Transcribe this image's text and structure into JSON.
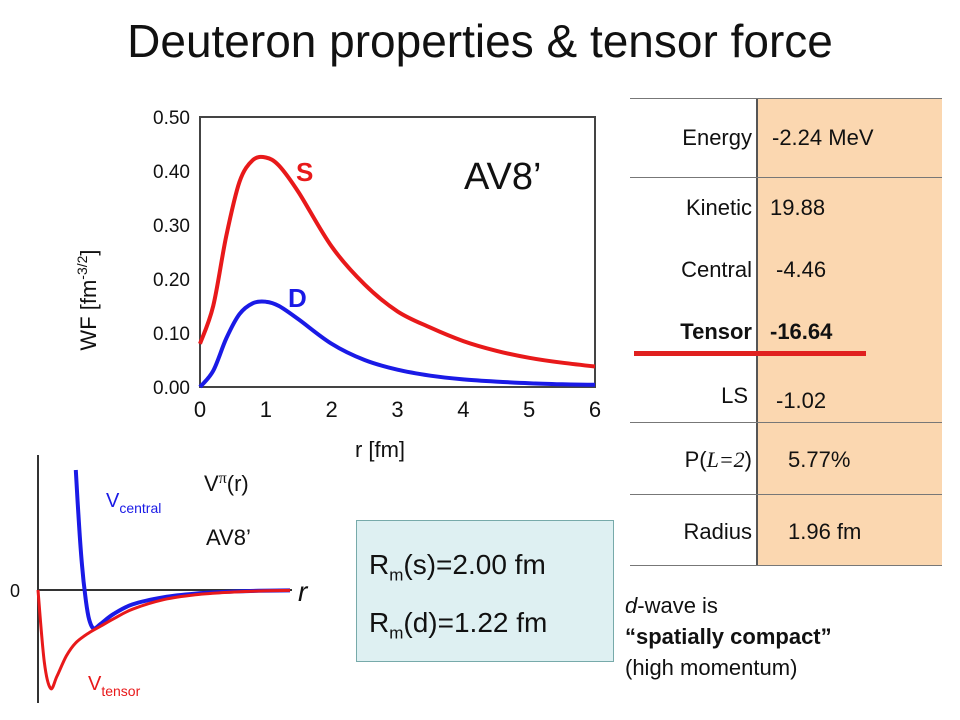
{
  "title": "Deuteron properties & tensor force",
  "wf_chart": {
    "ylabel_main": "WF [fm",
    "ylabel_sup": "-3/2",
    "ylabel_end": "]",
    "xlabel": "r [fm]",
    "y_ticks": [
      "0.00",
      "0.10",
      "0.20",
      "0.30",
      "0.40",
      "0.50"
    ],
    "x_ticks": [
      "0",
      "1",
      "2",
      "3",
      "4",
      "5",
      "6"
    ],
    "label_s": "S",
    "label_d": "D",
    "label_model": "AV8’",
    "color_s": "#e8191a",
    "color_d": "#1a1ae6"
  },
  "chart_data": [
    {
      "type": "line",
      "title": "",
      "xlabel": "r [fm]",
      "ylabel": "WF [fm-3/2]",
      "xlim": [
        0,
        6
      ],
      "ylim": [
        0,
        0.5
      ],
      "grid": false,
      "series": [
        {
          "name": "S",
          "color": "#e8191a",
          "x": [
            0,
            0.2,
            0.4,
            0.6,
            0.8,
            1.0,
            1.2,
            1.5,
            2.0,
            2.5,
            3.0,
            3.5,
            4.0,
            4.5,
            5.0,
            5.5,
            6.0
          ],
          "y": [
            0.08,
            0.15,
            0.28,
            0.38,
            0.42,
            0.425,
            0.41,
            0.36,
            0.26,
            0.19,
            0.14,
            0.11,
            0.085,
            0.067,
            0.054,
            0.045,
            0.038
          ]
        },
        {
          "name": "D",
          "color": "#1a1ae6",
          "x": [
            0,
            0.2,
            0.4,
            0.6,
            0.8,
            1.0,
            1.2,
            1.5,
            2.0,
            2.5,
            3.0,
            3.5,
            4.0,
            4.5,
            5.0,
            5.5,
            6.0
          ],
          "y": [
            0.0,
            0.03,
            0.09,
            0.135,
            0.155,
            0.158,
            0.15,
            0.125,
            0.08,
            0.05,
            0.032,
            0.021,
            0.014,
            0.01,
            0.007,
            0.005,
            0.004
          ]
        }
      ]
    },
    {
      "type": "line",
      "title": "",
      "xlabel": "r",
      "ylabel": "",
      "grid": false,
      "series": [
        {
          "name": "V central",
          "color": "#1a1ae6",
          "x": [
            0.6,
            0.65,
            0.7,
            0.75,
            0.8,
            0.85,
            0.9,
            1.0,
            1.2,
            1.5,
            2.0,
            2.5,
            3.0,
            3.5,
            4.0
          ],
          "y": [
            1.0,
            0.55,
            0.2,
            -0.05,
            -0.22,
            -0.3,
            -0.32,
            -0.28,
            -0.2,
            -0.12,
            -0.06,
            -0.03,
            -0.015,
            -0.007,
            -0.003
          ]
        },
        {
          "name": "V tensor",
          "color": "#e8191a",
          "x": [
            0.0,
            0.1,
            0.2,
            0.3,
            0.45,
            0.6,
            0.8,
            1.0,
            1.2,
            1.5,
            2.0,
            2.5,
            3.0,
            3.5,
            4.0
          ],
          "y": [
            0.0,
            -0.6,
            -0.82,
            -0.72,
            -0.55,
            -0.44,
            -0.36,
            -0.3,
            -0.24,
            -0.16,
            -0.08,
            -0.04,
            -0.02,
            -0.008,
            -0.003
          ]
        }
      ]
    }
  ],
  "pot_chart": {
    "zero_label": "0",
    "r_label": "r",
    "vpi_main": "V",
    "vpi_sup": "π",
    "vpi_end": "(r)",
    "model": "AV8’",
    "vc_main": "V",
    "vc_sub": "central",
    "vt_main": "V",
    "vt_sub": "tensor"
  },
  "table": {
    "rows": [
      {
        "label": "Energy",
        "value": "-2.24 MeV"
      },
      {
        "label": "Kinetic",
        "value": "19.88"
      },
      {
        "label": "Central",
        "value": "-4.46"
      },
      {
        "label": "Tensor",
        "value": "-16.64"
      },
      {
        "label": "LS",
        "value": "-1.02"
      },
      {
        "label_pre": "P(",
        "label_italic": "L=2",
        "label_post": ")",
        "value": "5.77%"
      },
      {
        "label": "Radius",
        "value": "1.96 fm"
      }
    ],
    "value_bg_color": "#fbd7b0",
    "highlight_color": "#e0201f"
  },
  "radii": {
    "line1_pre": "R",
    "line1_sub": "m",
    "line1_post": "(s)=2.00 fm",
    "line2_pre": "R",
    "line2_sub": "m",
    "line2_post": "(d)=1.22 fm"
  },
  "note": {
    "italic_d": "d",
    "line1_rest": "-wave is",
    "line2": "“spatially compact”",
    "line3": "(high momentum)"
  }
}
